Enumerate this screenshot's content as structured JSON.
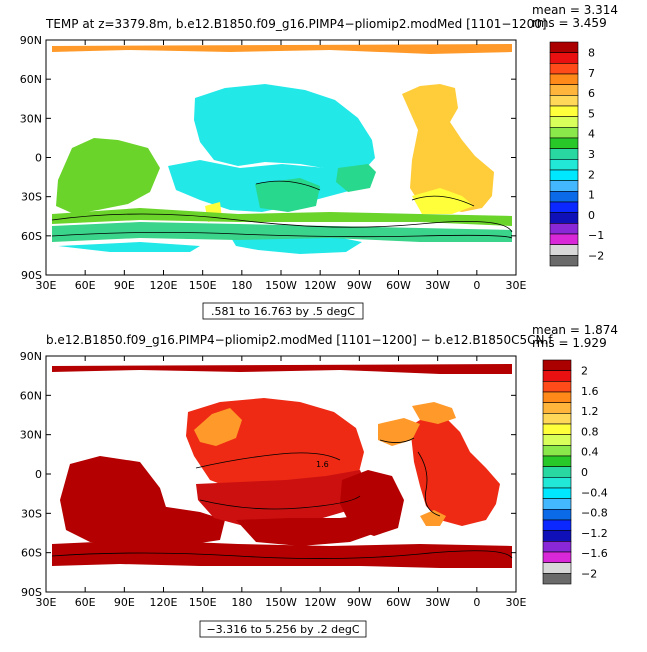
{
  "chart_data": [
    {
      "type": "heatmap",
      "title": "TEMP at z=3379.8m, b.e12.B1850.f09_g16.PIMP4−pliomip2.modMed [1101−1200]",
      "stats": {
        "mean": "mean = 3.314",
        "rms": "rms = 3.459"
      },
      "contour_info": ".581 to 16.763 by .5 degC",
      "x_ticks": [
        "30E",
        "60E",
        "90E",
        "120E",
        "150E",
        "180",
        "150W",
        "120W",
        "90W",
        "60W",
        "30W",
        "0",
        "30E"
      ],
      "y_ticks": [
        "90N",
        "60N",
        "30N",
        "0",
        "30S",
        "60S",
        "90S"
      ],
      "colorbar": {
        "labels": [
          "8",
          "7",
          "6",
          "5",
          "4",
          "3",
          "2",
          "1",
          "0",
          "−1",
          "−2"
        ],
        "colors": [
          "#aa0000",
          "#e81010",
          "#ff4a1a",
          "#ff8a1a",
          "#ffb43c",
          "#ffd85a",
          "#ffff3c",
          "#d8ff5a",
          "#8ae84a",
          "#28c828",
          "#28d8a0",
          "#22e8d8",
          "#00e8ff",
          "#44b8ff",
          "#0a6ae8",
          "#0a28ff",
          "#1010b8",
          "#8a28d8",
          "#d828d8",
          "#d8d8d8",
          "#6a6a6a"
        ]
      }
    },
    {
      "type": "heatmap",
      "title": "b.e12.B1850.f09_g16.PIMP4−pliomip2.modMed [1101−1200] − b.e12.B1850C5CN.f",
      "stats": {
        "mean": "mean = 1.874",
        "rms": "rms = 1.929"
      },
      "contour_info": "−3.316 to 5.256 by .2 degC",
      "contour_label": "1.6",
      "x_ticks": [
        "30E",
        "60E",
        "90E",
        "120E",
        "150E",
        "180",
        "150W",
        "120W",
        "90W",
        "60W",
        "30W",
        "0",
        "30E"
      ],
      "y_ticks": [
        "90N",
        "60N",
        "30N",
        "0",
        "30S",
        "60S",
        "90S"
      ],
      "colorbar": {
        "labels": [
          "2",
          "1.6",
          "1.2",
          "0.8",
          "0.4",
          "0",
          "−0.4",
          "−0.8",
          "−1.2",
          "−1.6",
          "−2"
        ],
        "colors": [
          "#aa0000",
          "#e81010",
          "#ff4a1a",
          "#ff8a1a",
          "#ffb43c",
          "#ffd85a",
          "#ffff3c",
          "#d8ff5a",
          "#8ae84a",
          "#28c828",
          "#28d8a0",
          "#22e8d8",
          "#00e8ff",
          "#44b8ff",
          "#0a6ae8",
          "#0a28ff",
          "#1010b8",
          "#8a28d8",
          "#d828d8",
          "#d8d8d8",
          "#6a6a6a"
        ]
      }
    }
  ]
}
